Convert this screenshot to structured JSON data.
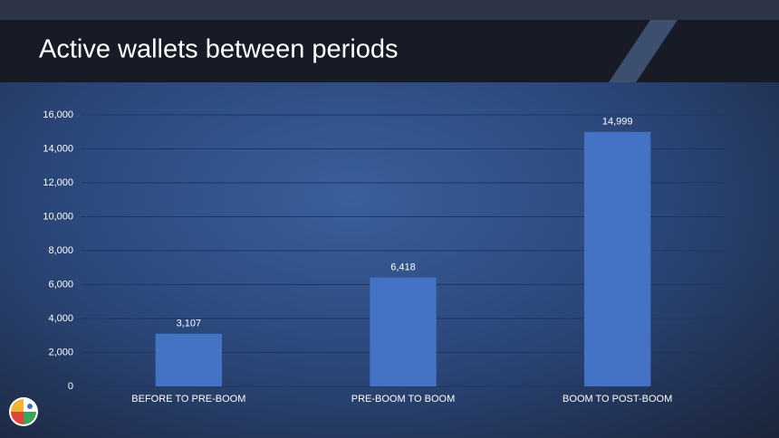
{
  "chart_data": {
    "type": "bar",
    "title": "Active wallets between periods",
    "categories": [
      "BEFORE TO PRE-BOOM",
      "PRE-BOOM TO BOOM",
      "BOOM TO POST-BOOM"
    ],
    "values": [
      3107,
      6418,
      14999
    ],
    "value_labels": [
      "3,107",
      "6,418",
      "14,999"
    ],
    "color": "#4472c4",
    "ylim": [
      0,
      16000
    ],
    "yticks": [
      0,
      {
        "value": 2000,
        "label": "2,000"
      },
      {
        "value": 4000,
        "label": "4,000"
      },
      {
        "value": 6000,
        "label": "6,000"
      },
      {
        "value": 8000,
        "label": "8,000"
      },
      {
        "value": 10000,
        "label": "10,000"
      },
      {
        "value": 12000,
        "label": "12,000"
      },
      {
        "value": 14000,
        "label": "14,000"
      },
      {
        "value": 16000,
        "label": "16,000"
      }
    ],
    "grid": true
  }
}
